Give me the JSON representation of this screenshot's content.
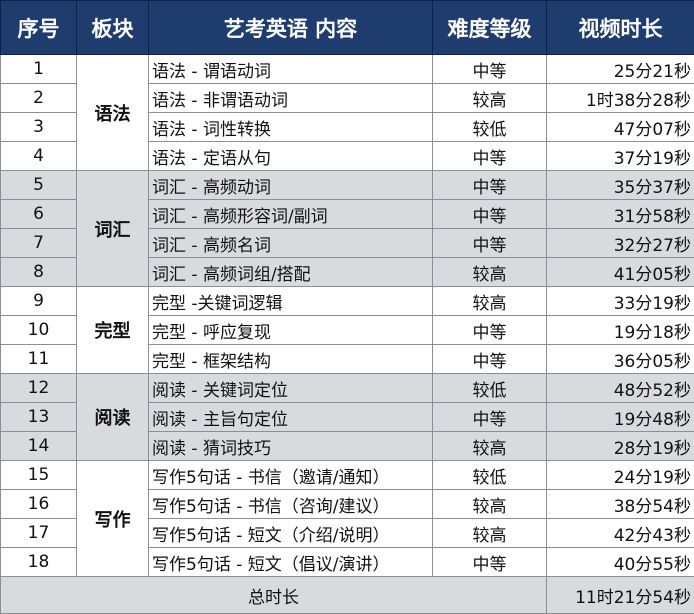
{
  "header": {
    "col_index": "序号",
    "col_category": "板块",
    "col_content": "艺考英语 内容",
    "col_level": "难度等级",
    "col_duration": "视频时长"
  },
  "groups": [
    {
      "category": "语法",
      "rows": [
        {
          "index": "1",
          "content": "语法 - 谓语动词",
          "level": "中等",
          "duration": "25分21秒"
        },
        {
          "index": "2",
          "content": "语法 - 非谓语动词",
          "level": "较高",
          "duration": "1时38分28秒"
        },
        {
          "index": "3",
          "content": "语法 - 词性转换",
          "level": "较低",
          "duration": "47分07秒"
        },
        {
          "index": "4",
          "content": "语法 - 定语从句",
          "level": "中等",
          "duration": "37分19秒"
        }
      ]
    },
    {
      "category": "词汇",
      "rows": [
        {
          "index": "5",
          "content": "词汇 - 高频动词",
          "level": "中等",
          "duration": "35分37秒"
        },
        {
          "index": "6",
          "content": "词汇 - 高频形容词/副词",
          "level": "中等",
          "duration": "31分58秒"
        },
        {
          "index": "7",
          "content": "词汇 - 高频名词",
          "level": "中等",
          "duration": "32分27秒"
        },
        {
          "index": "8",
          "content": "词汇 - 高频词组/搭配",
          "level": "较高",
          "duration": "41分05秒"
        }
      ]
    },
    {
      "category": "完型",
      "rows": [
        {
          "index": "9",
          "content": "完型 -关键词逻辑",
          "level": "较高",
          "duration": "33分19秒"
        },
        {
          "index": "10",
          "content": "完型 - 呼应复现",
          "level": "中等",
          "duration": "19分18秒"
        },
        {
          "index": "11",
          "content": "完型 - 框架结构",
          "level": "中等",
          "duration": "36分05秒"
        }
      ]
    },
    {
      "category": "阅读",
      "rows": [
        {
          "index": "12",
          "content": "阅读 - 关键词定位",
          "level": "较低",
          "duration": "48分52秒"
        },
        {
          "index": "13",
          "content": "阅读 - 主旨句定位",
          "level": "中等",
          "duration": "19分48秒"
        },
        {
          "index": "14",
          "content": "阅读 - 猜词技巧",
          "level": "较高",
          "duration": "28分19秒"
        }
      ]
    },
    {
      "category": "写作",
      "rows": [
        {
          "index": "15",
          "content": "写作5句话 - 书信（邀请/通知）",
          "level": "较低",
          "duration": "24分19秒"
        },
        {
          "index": "16",
          "content": "写作5句话 - 书信（咨询/建议）",
          "level": "较高",
          "duration": "38分54秒"
        },
        {
          "index": "17",
          "content": "写作5句话 - 短文（介绍/说明）",
          "level": "较高",
          "duration": "42分43秒"
        },
        {
          "index": "18",
          "content": "写作5句话 - 短文（倡议/演讲）",
          "level": "中等",
          "duration": "40分55秒"
        }
      ]
    }
  ],
  "footer": {
    "total_label": "总时长",
    "total_value": "11时21分54秒"
  },
  "colors": {
    "header_bg": "#1f3c6e",
    "header_text": "#ffffff",
    "band_gray": "#d9dade",
    "band_white": "#ffffff"
  }
}
